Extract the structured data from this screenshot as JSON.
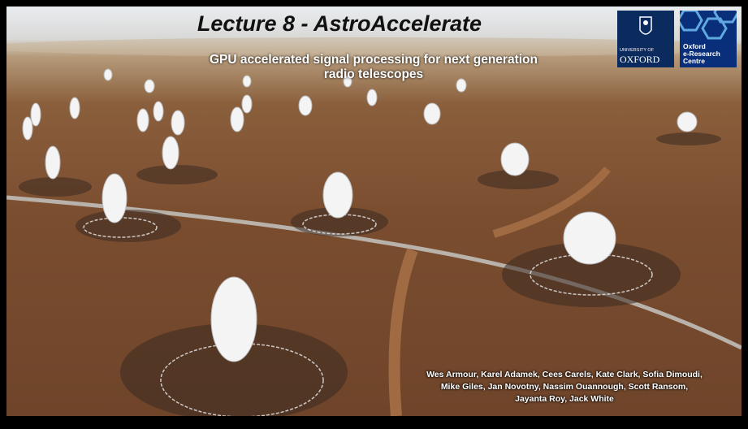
{
  "slide": {
    "title": "Lecture 8 - AstroAccelerate",
    "subtitle": "GPU accelerated signal processing for next generation radio telescopes",
    "authors": [
      "Wes Armour, Karel Adamek, Cees Carels, Kate Clark, Sofia Dimoudi,",
      "Mike Giles, Jan Novotny, Nassim Ouannough, Scott Ransom,",
      "Jayanta Roy, Jack White"
    ]
  },
  "logos": {
    "oxford": [
      "UNIVERSITY OF",
      "OXFORD"
    ],
    "oerc": [
      "Oxford",
      "e-Research",
      "Centre"
    ]
  }
}
